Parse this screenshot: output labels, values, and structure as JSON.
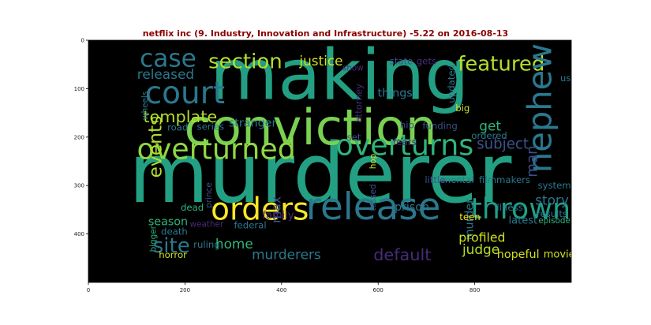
{
  "chart_data": {
    "type": "wordcloud",
    "title": "netflix inc (9. Industry, Innovation and Infrastructure) -5.22 on 2016-08-13",
    "xlim": [
      0,
      1000
    ],
    "ylim": [
      500,
      0
    ],
    "xticks": [
      0,
      200,
      400,
      600,
      800
    ],
    "yticks": [
      0,
      100,
      200,
      300,
      400
    ],
    "background": "#000000",
    "words": [
      {
        "text": "making",
        "x": 520,
        "y": 72,
        "size": 68,
        "color": "#23a083",
        "rotate": 0
      },
      {
        "text": "murderer",
        "x": 480,
        "y": 275,
        "size": 80,
        "color": "#23a083",
        "rotate": 0
      },
      {
        "text": "conviction",
        "x": 460,
        "y": 180,
        "size": 48,
        "color": "#7ad151",
        "rotate": 0
      },
      {
        "text": "overturned",
        "x": 265,
        "y": 225,
        "size": 28,
        "color": "#8fd744",
        "rotate": 0
      },
      {
        "text": "overturns",
        "x": 655,
        "y": 217,
        "size": 28,
        "color": "#2fb47c",
        "rotate": 0
      },
      {
        "text": "release",
        "x": 590,
        "y": 345,
        "size": 36,
        "color": "#2a788e",
        "rotate": 0
      },
      {
        "text": "orders",
        "x": 355,
        "y": 350,
        "size": 30,
        "color": "#fde725",
        "rotate": 0
      },
      {
        "text": "court",
        "x": 200,
        "y": 110,
        "size": 30,
        "color": "#2a788e",
        "rotate": 0
      },
      {
        "text": "case",
        "x": 165,
        "y": 38,
        "size": 24,
        "color": "#2a788e",
        "rotate": 0
      },
      {
        "text": "section",
        "x": 325,
        "y": 45,
        "size": 20,
        "color": "#b5de2b",
        "rotate": 0
      },
      {
        "text": "featured",
        "x": 855,
        "y": 50,
        "size": 20,
        "color": "#b5de2b",
        "rotate": 0
      },
      {
        "text": "nephew",
        "x": 935,
        "y": 140,
        "size": 32,
        "color": "#2a788e",
        "rotate": -90
      },
      {
        "text": "thrown",
        "x": 895,
        "y": 348,
        "size": 28,
        "color": "#1fa088",
        "rotate": 0
      },
      {
        "text": "template",
        "x": 190,
        "y": 158,
        "size": 16,
        "color": "#b5de2b",
        "rotate": 0
      },
      {
        "text": "events",
        "x": 138,
        "y": 220,
        "size": 18,
        "color": "#b5de2b",
        "rotate": -90
      },
      {
        "text": "released",
        "x": 160,
        "y": 70,
        "size": 13,
        "color": "#2a788e",
        "rotate": 0
      },
      {
        "text": "justice",
        "x": 482,
        "y": 42,
        "size": 13,
        "color": "#d2e21b",
        "rotate": 0
      },
      {
        "text": "state",
        "x": 648,
        "y": 43,
        "size": 9,
        "color": "#3b528b",
        "rotate": 0
      },
      {
        "text": "gets",
        "x": 700,
        "y": 43,
        "size": 9,
        "color": "#472c7a",
        "rotate": 0
      },
      {
        "text": "show",
        "x": 548,
        "y": 58,
        "size": 8,
        "color": "#472c7a",
        "rotate": 0
      },
      {
        "text": "us",
        "x": 988,
        "y": 78,
        "size": 9,
        "color": "#2a788e",
        "rotate": 0
      },
      {
        "text": "updated",
        "x": 752,
        "y": 90,
        "size": 9,
        "color": "#2a788e",
        "rotate": -90
      },
      {
        "text": "things",
        "x": 635,
        "y": 110,
        "size": 11,
        "color": "#2a788e",
        "rotate": 0
      },
      {
        "text": "attorney",
        "x": 560,
        "y": 130,
        "size": 9,
        "color": "#472c7a",
        "rotate": -90
      },
      {
        "text": "big",
        "x": 775,
        "y": 140,
        "size": 9,
        "color": "#d2e21b",
        "rotate": 0
      },
      {
        "text": "get",
        "x": 832,
        "y": 177,
        "size": 13,
        "color": "#2fb47c",
        "rotate": 0
      },
      {
        "text": "funding",
        "x": 728,
        "y": 177,
        "size": 9,
        "color": "#3b528b",
        "rotate": 0
      },
      {
        "text": "ordered",
        "x": 830,
        "y": 197,
        "size": 9,
        "color": "#2a788e",
        "rotate": 0
      },
      {
        "text": "hip",
        "x": 660,
        "y": 175,
        "size": 9,
        "color": "#3b528b",
        "rotate": 0
      },
      {
        "text": "fears",
        "x": 655,
        "y": 210,
        "size": 9,
        "color": "#472c7a",
        "rotate": 0
      },
      {
        "text": "set",
        "x": 550,
        "y": 200,
        "size": 9,
        "color": "#3b528b",
        "rotate": 0
      },
      {
        "text": "hop",
        "x": 590,
        "y": 250,
        "size": 8,
        "color": "#d2e21b",
        "rotate": -90
      },
      {
        "text": "stranger",
        "x": 340,
        "y": 172,
        "size": 11,
        "color": "#2a788e",
        "rotate": 0
      },
      {
        "text": "road",
        "x": 185,
        "y": 180,
        "size": 9,
        "color": "#2a788e",
        "rotate": 0
      },
      {
        "text": "series",
        "x": 253,
        "y": 178,
        "size": 9,
        "color": "#2a788e",
        "rotate": 0
      },
      {
        "text": "wheels",
        "x": 118,
        "y": 135,
        "size": 8,
        "color": "#2a788e",
        "rotate": -90
      },
      {
        "text": "subject",
        "x": 858,
        "y": 215,
        "size": 14,
        "color": "#3b528b",
        "rotate": 0
      },
      {
        "text": "man",
        "x": 920,
        "y": 250,
        "size": 14,
        "color": "#3b528b",
        "rotate": -90
      },
      {
        "text": "mental",
        "x": 765,
        "y": 288,
        "size": 9,
        "color": "#2a788e",
        "rotate": 0
      },
      {
        "text": "filmmakers",
        "x": 862,
        "y": 288,
        "size": 9,
        "color": "#2a788e",
        "rotate": 0
      },
      {
        "text": "little",
        "x": 718,
        "y": 288,
        "size": 9,
        "color": "#3b528b",
        "rotate": 0
      },
      {
        "text": "system",
        "x": 965,
        "y": 300,
        "size": 9,
        "color": "#2a788e",
        "rotate": 0
      },
      {
        "text": "story",
        "x": 960,
        "y": 330,
        "size": 13,
        "color": "#2a788e",
        "rotate": 0
      },
      {
        "text": "results",
        "x": 960,
        "y": 358,
        "size": 9,
        "color": "#2a788e",
        "rotate": 0
      },
      {
        "text": "max",
        "x": 390,
        "y": 350,
        "size": 12,
        "color": "#3b528b",
        "rotate": -90
      },
      {
        "text": "prince",
        "x": 250,
        "y": 320,
        "size": 8,
        "color": "#3b528b",
        "rotate": -90
      },
      {
        "text": "tossed",
        "x": 590,
        "y": 325,
        "size": 8,
        "color": "#3b528b",
        "rotate": -90
      },
      {
        "text": "prison",
        "x": 670,
        "y": 345,
        "size": 11,
        "color": "#2a788e",
        "rotate": 0
      },
      {
        "text": "murder",
        "x": 790,
        "y": 370,
        "size": 11,
        "color": "#2a788e",
        "rotate": -90
      },
      {
        "text": "illness",
        "x": 870,
        "y": 345,
        "size": 9,
        "color": "#2a788e",
        "rotate": 0
      },
      {
        "text": "dead",
        "x": 215,
        "y": 345,
        "size": 9,
        "color": "#2fb47c",
        "rotate": 0
      },
      {
        "text": "family",
        "x": 393,
        "y": 362,
        "size": 10,
        "color": "#472c7a",
        "rotate": 0
      },
      {
        "text": "season",
        "x": 165,
        "y": 375,
        "size": 11,
        "color": "#2fb47c",
        "rotate": 0
      },
      {
        "text": "weather",
        "x": 245,
        "y": 380,
        "size": 8,
        "color": "#472c7a",
        "rotate": 0
      },
      {
        "text": "federal",
        "x": 335,
        "y": 382,
        "size": 9,
        "color": "#2a788e",
        "rotate": 0
      },
      {
        "text": "teen",
        "x": 790,
        "y": 365,
        "size": 9,
        "color": "#fde725",
        "rotate": 0
      },
      {
        "text": "latest",
        "x": 900,
        "y": 373,
        "size": 10,
        "color": "#2a788e",
        "rotate": 0
      },
      {
        "text": "episode",
        "x": 965,
        "y": 373,
        "size": 8,
        "color": "#2fb47c",
        "rotate": 0
      },
      {
        "text": "bigger",
        "x": 135,
        "y": 410,
        "size": 8,
        "color": "#2fb47c",
        "rotate": -90
      },
      {
        "text": "death",
        "x": 178,
        "y": 395,
        "size": 9,
        "color": "#2a788e",
        "rotate": 0
      },
      {
        "text": "site",
        "x": 172,
        "y": 425,
        "size": 20,
        "color": "#2a788e",
        "rotate": 0
      },
      {
        "text": "ruling",
        "x": 245,
        "y": 422,
        "size": 9,
        "color": "#2a788e",
        "rotate": 0
      },
      {
        "text": "home",
        "x": 302,
        "y": 420,
        "size": 13,
        "color": "#2fb47c",
        "rotate": 0
      },
      {
        "text": "horror",
        "x": 175,
        "y": 443,
        "size": 9,
        "color": "#d2e21b",
        "rotate": 0
      },
      {
        "text": "murderers",
        "x": 410,
        "y": 442,
        "size": 13,
        "color": "#2a788e",
        "rotate": 0
      },
      {
        "text": "default",
        "x": 650,
        "y": 443,
        "size": 16,
        "color": "#472c7a",
        "rotate": 0
      },
      {
        "text": "profiled",
        "x": 815,
        "y": 408,
        "size": 12,
        "color": "#d2e21b",
        "rotate": 0
      },
      {
        "text": "judge",
        "x": 813,
        "y": 432,
        "size": 13,
        "color": "#b5de2b",
        "rotate": 0
      },
      {
        "text": "hopeful",
        "x": 890,
        "y": 443,
        "size": 11,
        "color": "#d2e21b",
        "rotate": 0
      },
      {
        "text": "movie",
        "x": 975,
        "y": 443,
        "size": 10,
        "color": "#d2e21b",
        "rotate": 0
      }
    ]
  }
}
